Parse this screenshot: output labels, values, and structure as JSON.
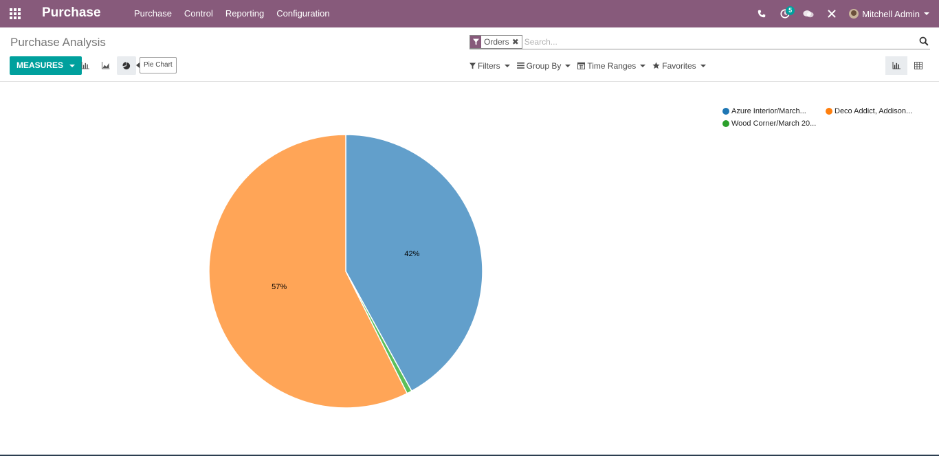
{
  "navbar": {
    "app_title": "Purchase",
    "menu": [
      "Purchase",
      "Control",
      "Reporting",
      "Configuration"
    ],
    "activity_badge": "5",
    "user_name": "Mitchell Admin",
    "colors": {
      "navbar_bg": "#875a7b",
      "accent": "#00a09d"
    }
  },
  "control_panel": {
    "breadcrumb": "Purchase Analysis",
    "search": {
      "facet_value": "Orders",
      "placeholder": "Search..."
    },
    "measures_label": "MEASURES",
    "tooltip": "Pie Chart",
    "filters": [
      "Filters",
      "Group By",
      "Time Ranges",
      "Favorites"
    ],
    "view_switch_icons": [
      "graph-view-icon",
      "pivot-view-icon"
    ]
  },
  "chart_data": {
    "type": "pie",
    "slices": [
      {
        "label": "Azure Interior/March...",
        "value": 42,
        "color": "#629fcb",
        "legend_color": "#1f77b4",
        "data_label": "42%"
      },
      {
        "label": "Wood Corner/March 20...",
        "value": 0.6,
        "color": "#5cbf5a",
        "legend_color": "#2ca02c",
        "data_label": ""
      },
      {
        "label": "Deco Addict, Addison...",
        "value": 57.4,
        "color": "#ffa557",
        "legend_color": "#ff7f0e",
        "data_label": "57%"
      }
    ],
    "legend_order": [
      0,
      2,
      1
    ],
    "legend_position": "top-right",
    "start_angle_deg": -90
  }
}
